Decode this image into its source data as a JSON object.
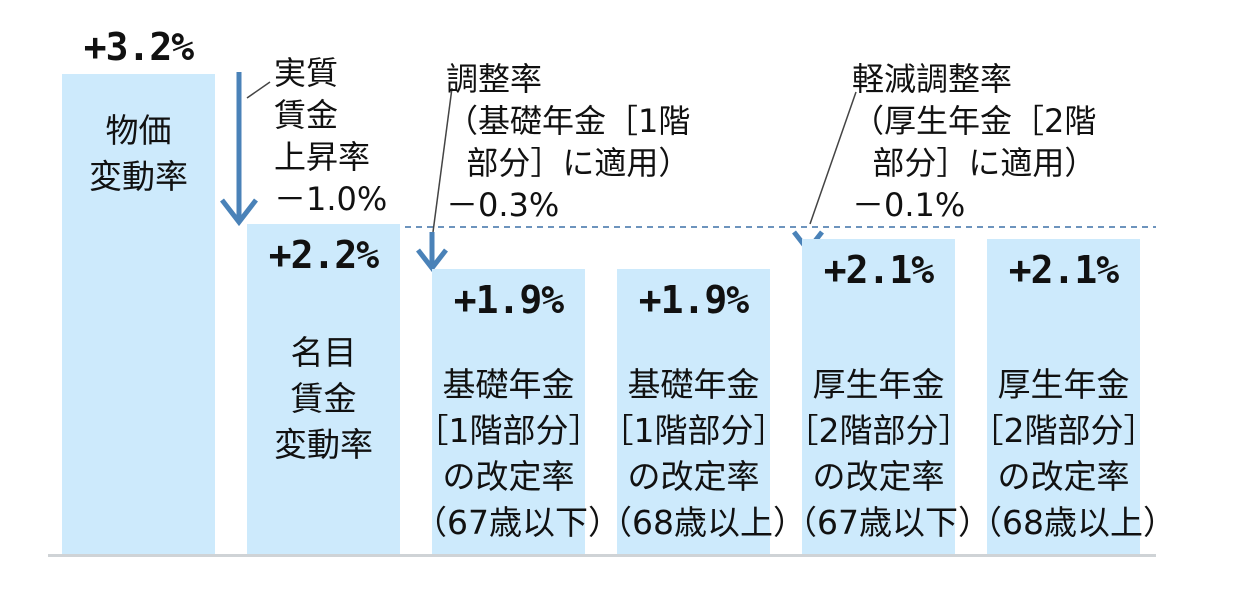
{
  "chart_data": {
    "type": "bar",
    "ylim": [
      0,
      3.2
    ],
    "grid": false,
    "bars": [
      {
        "value": 3.2,
        "value_label": "+3.2%",
        "label": "物価\n変動率"
      },
      {
        "value": 2.2,
        "value_label": "+2.2%",
        "label": "名目\n賃金\n変動率"
      },
      {
        "value": 1.9,
        "value_label": "+1.9%",
        "label": "基礎年金\n［1階部分］\nの改定率\n（67歳以下）"
      },
      {
        "value": 1.9,
        "value_label": "+1.9%",
        "label": "基礎年金\n［1階部分］\nの改定率\n（68歳以上）"
      },
      {
        "value": 2.1,
        "value_label": "+2.1%",
        "label": "厚生年金\n［2階部分］\nの改定率\n（67歳以下）"
      },
      {
        "value": 2.1,
        "value_label": "+2.1%",
        "label": "厚生年金\n［2階部分］\nの改定率\n（68歳以上）"
      }
    ],
    "annotations": [
      {
        "text": "実質\n賃金\n上昇率\n－1.0%",
        "value": -1.0
      },
      {
        "text": "調整率\n（基礎年金［1階\n  部分］に適用）\n－0.3%",
        "value": -0.3
      },
      {
        "text": "軽減調整率\n（厚生年金［2階\n  部分］に適用）\n－0.1%",
        "value": -0.1
      }
    ],
    "colors": {
      "bar": "#cdeafc",
      "arrow": "#4a82b8",
      "dashed_line": "#6d94bd",
      "baseline": "#cfd3d6"
    }
  }
}
